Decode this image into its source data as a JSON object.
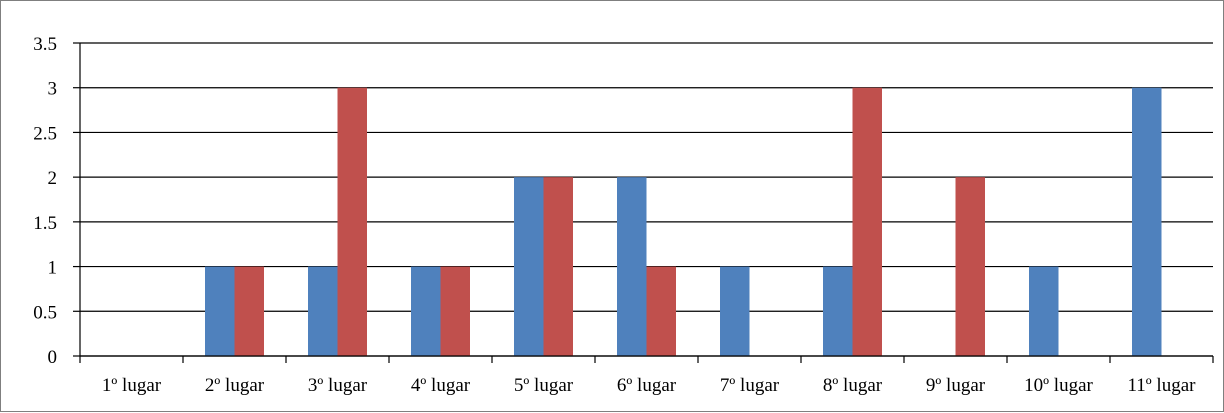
{
  "chart_data": {
    "type": "bar",
    "title": "",
    "xlabel": "",
    "ylabel": "",
    "categories": [
      "1º lugar",
      "2º lugar",
      "3º lugar",
      "4º lugar",
      "5º lugar",
      "6º lugar",
      "7º lugar",
      "8º lugar",
      "9º lugar",
      "10º lugar",
      "11º lugar"
    ],
    "series": [
      {
        "color": "#4f81bd",
        "values": [
          0,
          1,
          1,
          1,
          2,
          2,
          1,
          1,
          0,
          1,
          3
        ]
      },
      {
        "color": "#c0504d",
        "values": [
          0,
          1,
          3,
          1,
          2,
          1,
          0,
          3,
          2,
          0,
          0
        ]
      }
    ],
    "ylim": [
      0,
      3.5
    ],
    "yticks": [
      "0",
      "0.5",
      "1",
      "1.5",
      "2",
      "2.5",
      "3",
      "3.5"
    ],
    "grid": true,
    "legend": "none"
  }
}
